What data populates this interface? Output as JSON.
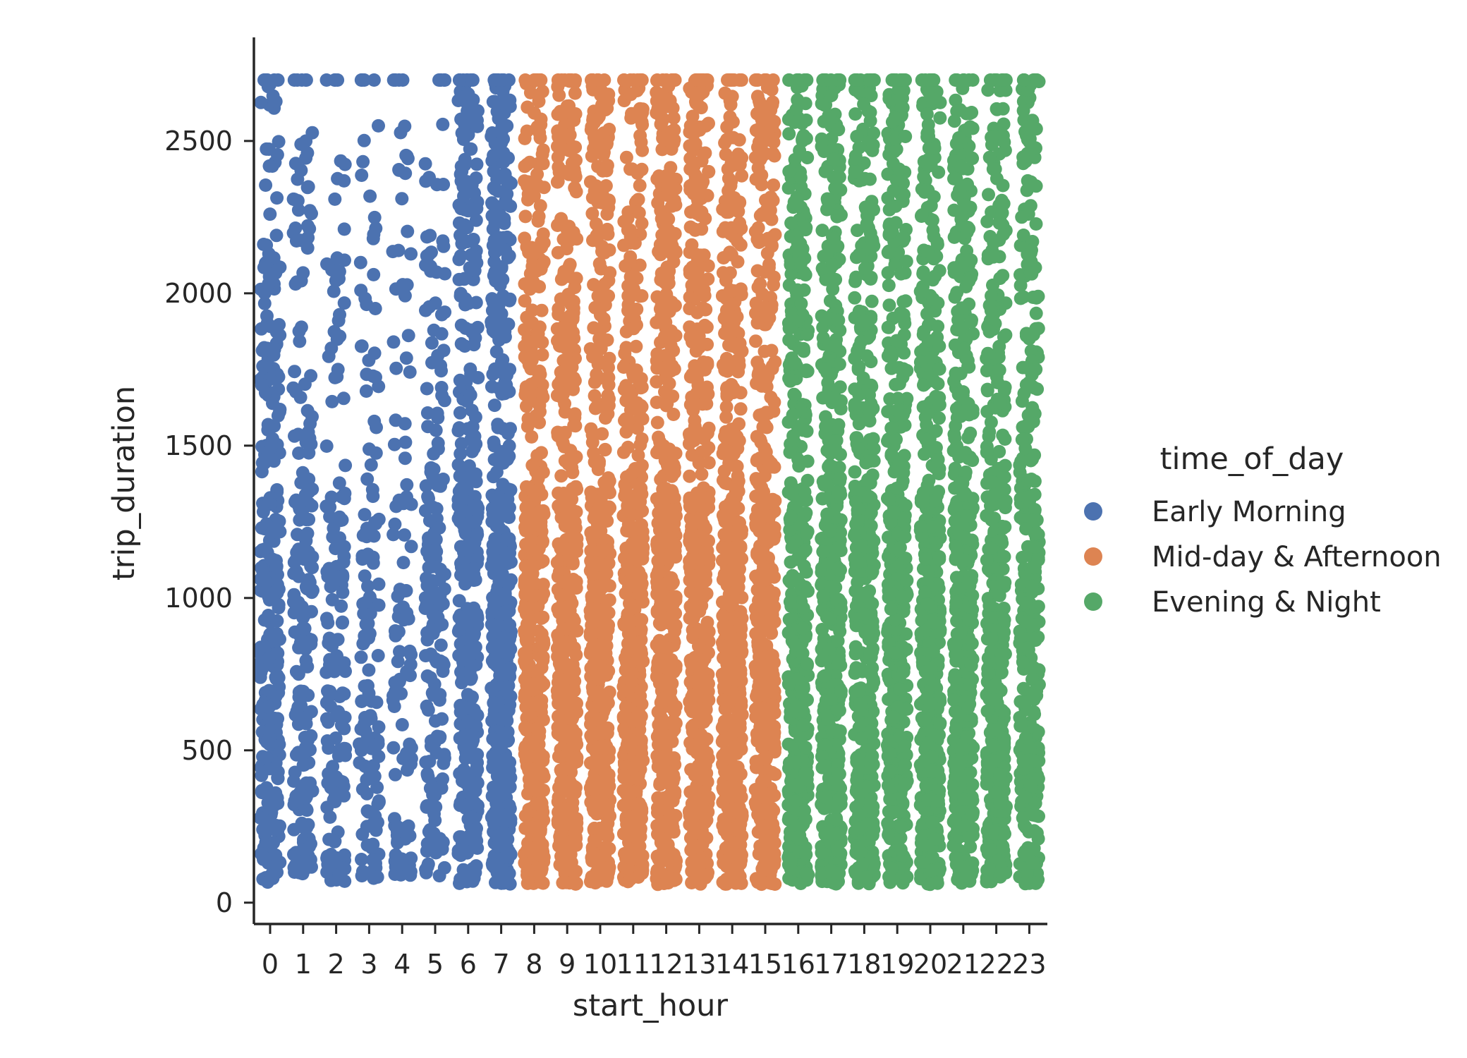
{
  "chart_data": {
    "type": "scatter",
    "subtype": "strip",
    "title": "",
    "xlabel": "start_hour",
    "ylabel": "trip_duration",
    "categories": [
      "0",
      "1",
      "2",
      "3",
      "4",
      "5",
      "6",
      "7",
      "8",
      "9",
      "10",
      "11",
      "12",
      "13",
      "14",
      "15",
      "16",
      "17",
      "18",
      "19",
      "20",
      "21",
      "22",
      "23"
    ],
    "ylim": [
      -70,
      2840
    ],
    "yticks": [
      0,
      500,
      1000,
      1500,
      2000,
      2500
    ],
    "grid": false,
    "legend": {
      "title": "time_of_day",
      "placement": "right"
    },
    "series": [
      {
        "name": "Early Morning",
        "color": "#4c72b0",
        "hours": [
          0,
          1,
          2,
          3,
          4,
          5,
          6,
          7
        ],
        "density": [
          0.55,
          0.35,
          0.22,
          0.18,
          0.12,
          0.3,
          0.75,
          1.0
        ],
        "y_min": [
          60,
          95,
          70,
          80,
          90,
          80,
          60,
          60
        ],
        "y_max": [
          2700,
          2700,
          2700,
          2700,
          2700,
          2700,
          2700,
          2700
        ]
      },
      {
        "name": "Mid-day & Afternoon",
        "color": "#dd8452",
        "hours": [
          8,
          9,
          10,
          11,
          12,
          13,
          14,
          15
        ],
        "density": [
          1.0,
          1.0,
          1.0,
          1.0,
          1.0,
          1.0,
          1.0,
          1.0
        ],
        "y_min": [
          60,
          60,
          60,
          60,
          60,
          60,
          60,
          60
        ],
        "y_max": [
          2700,
          2700,
          2700,
          2700,
          2700,
          2700,
          2700,
          2700
        ]
      },
      {
        "name": "Evening & Night",
        "color": "#55a868",
        "hours": [
          16,
          17,
          18,
          19,
          20,
          21,
          22,
          23
        ],
        "density": [
          1.0,
          1.0,
          1.0,
          1.0,
          1.0,
          0.95,
          0.85,
          0.7
        ],
        "y_min": [
          60,
          60,
          60,
          60,
          60,
          60,
          60,
          60
        ],
        "y_max": [
          2700,
          2700,
          2700,
          2700,
          2700,
          2700,
          2700,
          2700
        ]
      }
    ],
    "cap_value": 2700
  }
}
